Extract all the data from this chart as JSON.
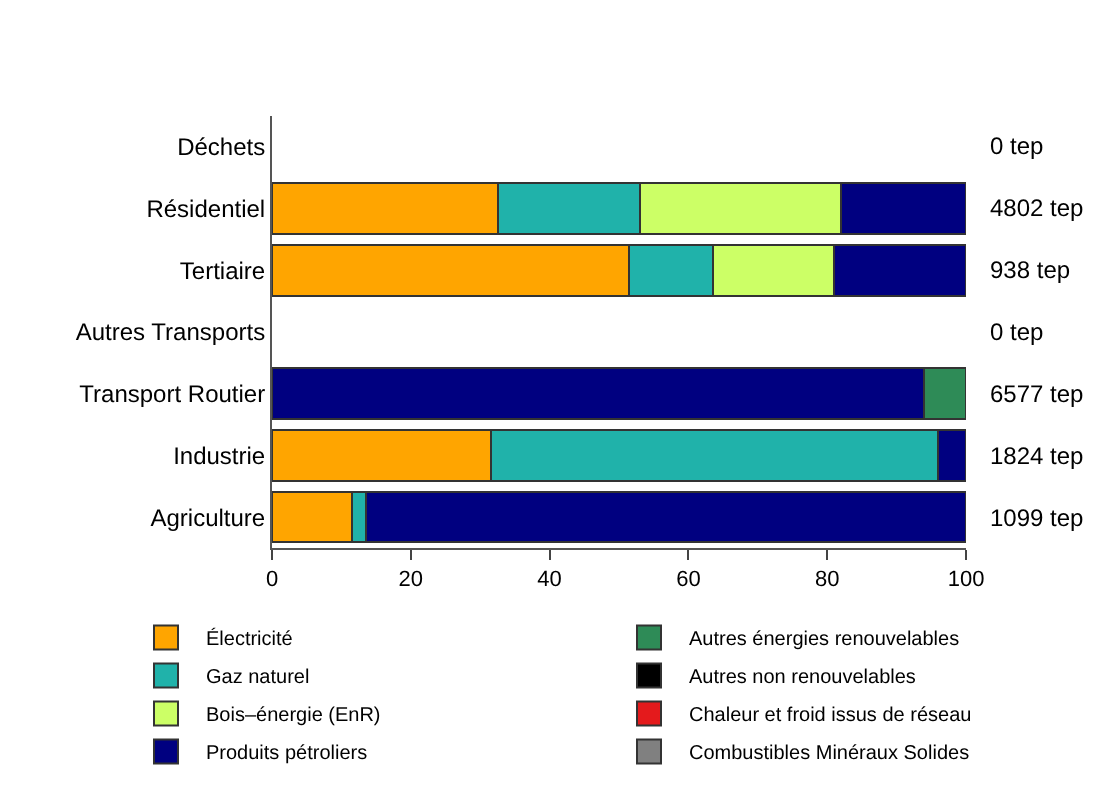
{
  "chart_data": {
    "type": "bar",
    "orientation": "horizontal",
    "stacked": true,
    "categories": [
      "Déchets",
      "Résidentiel",
      "Tertiaire",
      "Autres Transports",
      "Transport Routier",
      "Industrie",
      "Agriculture"
    ],
    "series": [
      {
        "name": "Électricité",
        "color": "#ffa500",
        "values": [
          null,
          32.5,
          51.5,
          null,
          null,
          31.5,
          11.5
        ]
      },
      {
        "name": "Gaz naturel",
        "color": "#20b2aa",
        "values": [
          null,
          20.5,
          12,
          null,
          null,
          64.5,
          2
        ]
      },
      {
        "name": "Bois–énergie (EnR)",
        "color": "#ccff66",
        "values": [
          null,
          29,
          17.5,
          null,
          null,
          null,
          null
        ]
      },
      {
        "name": "Produits pétroliers",
        "color": "#000080",
        "values": [
          null,
          18,
          19,
          null,
          94,
          4,
          86.5
        ]
      },
      {
        "name": "Autres énergies renouvelables",
        "color": "#2e8b57",
        "values": [
          null,
          null,
          null,
          null,
          6,
          null,
          null
        ]
      },
      {
        "name": "Autres non renouvelables",
        "color": "#000000",
        "values": [
          null,
          null,
          null,
          null,
          null,
          null,
          null
        ]
      },
      {
        "name": "Chaleur et froid issus de réseau",
        "color": "#e41a1c",
        "values": [
          null,
          null,
          null,
          null,
          null,
          null,
          null
        ]
      },
      {
        "name": "Combustibles Minéraux Solides",
        "color": "#808080",
        "values": [
          null,
          null,
          null,
          null,
          null,
          null,
          null
        ]
      }
    ],
    "annotations": [
      "0 tep",
      "4802 tep",
      "938 tep",
      "0 tep",
      "6577 tep",
      "1824 tep",
      "1099 tep"
    ],
    "xlim": [
      0,
      100
    ],
    "xticks": [
      0,
      20,
      40,
      60,
      80,
      100
    ],
    "legend": "bottom"
  }
}
